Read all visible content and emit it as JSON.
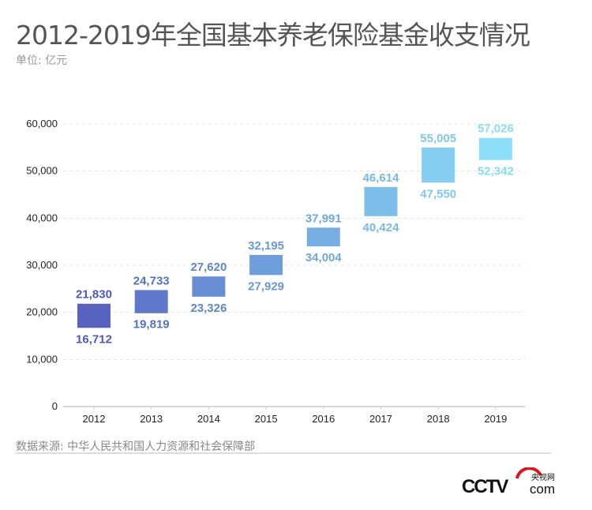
{
  "title": "2012-2019年全国基本养老保险基金收支情况",
  "unit": "单位: 亿元",
  "source": "数据来源: 中华人民共和国人力资源和社会保障部",
  "logo": {
    "text": "CCTV",
    "sub": "com",
    "cn": "央视网"
  },
  "chart_data": {
    "type": "bar",
    "subtype": "floating-range",
    "categories": [
      "2012",
      "2013",
      "2014",
      "2015",
      "2016",
      "2017",
      "2018",
      "2019"
    ],
    "series": [
      {
        "values": [
          21830,
          24733,
          27620,
          32195,
          37991,
          46614,
          55005,
          57026
        ]
      },
      {
        "values": [
          16712,
          19819,
          23326,
          27929,
          34004,
          40424,
          47550,
          52342
        ]
      }
    ],
    "ylim": [
      0,
      60000
    ],
    "yticks": [
      "0",
      "10,000",
      "20,000",
      "30,000",
      "40,000",
      "50,000",
      "60,000"
    ],
    "ytick_values": [
      0,
      10000,
      20000,
      30000,
      40000,
      50000,
      60000
    ],
    "grid": true,
    "colors": [
      "#5862bf",
      "#5f78c9",
      "#688ed3",
      "#6e9edb",
      "#76aee2",
      "#7dbde9",
      "#86cdf2",
      "#8ee0fa"
    ],
    "label_colors": [
      "#4f58b8",
      "#5670c4",
      "#5f86cc",
      "#6898d6",
      "#6fa8dd",
      "#78b9e6",
      "#80c8ee",
      "#88dcf6"
    ]
  }
}
